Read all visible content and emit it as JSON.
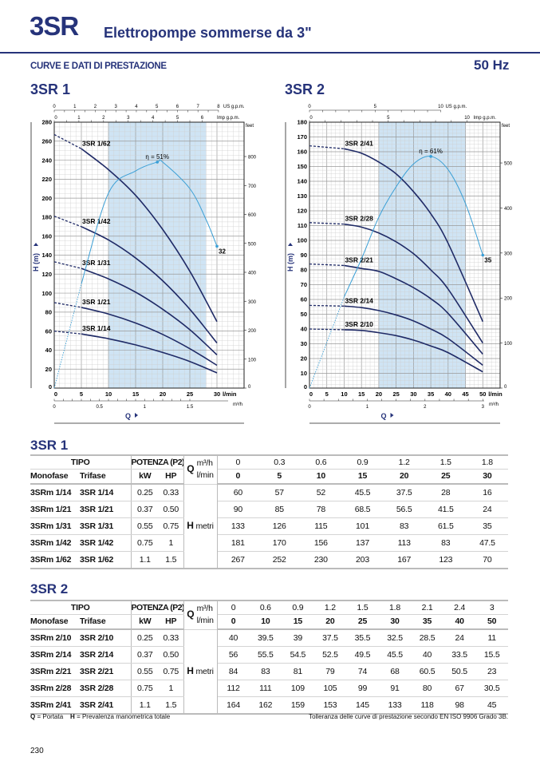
{
  "header": {
    "brand": "3SR",
    "subtitle": "Elettropompe sommerse da 3\"",
    "section": "CURVE E DATI DI PRESTAZIONE",
    "frequency": "50 Hz"
  },
  "colors": {
    "navy": "#26337a",
    "curve": "#1f2a66",
    "efficiency": "#3a9fd6",
    "band": "#cfe4f4"
  },
  "chart_data": [
    {
      "type": "line",
      "title": "3SR 1",
      "ylabel": "H (m)",
      "xlabel": "Q",
      "x_unit": "l/min",
      "xlim": [
        0,
        35
      ],
      "ylim": [
        0,
        280
      ],
      "x_ticks": [
        0,
        5,
        10,
        15,
        20,
        25,
        30
      ],
      "y_ticks": [
        0,
        20,
        40,
        60,
        80,
        100,
        120,
        140,
        160,
        180,
        200,
        220,
        240,
        260,
        280
      ],
      "m3h_ticks": [
        "0",
        "0.5",
        "1",
        "1.5"
      ],
      "m3h_unit": "m³/h",
      "us_gpm_ticks": [
        "0",
        "1",
        "2",
        "3",
        "4",
        "5",
        "6",
        "7",
        "8"
      ],
      "us_gpm_unit": "US g.p.m.",
      "imp_gpm_ticks": [
        "0",
        "1",
        "2",
        "3",
        "4",
        "5",
        "6"
      ],
      "imp_gpm_unit": "Imp g.p.m.",
      "feet_ticks": [
        "0",
        "100",
        "200",
        "300",
        "400",
        "500",
        "600",
        "700",
        "800"
      ],
      "feet_unit": "feet",
      "recommended_range": [
        10,
        28
      ],
      "dashed_until": 5,
      "series": [
        {
          "name": "3SR 1/14",
          "x": [
            0,
            5,
            10,
            15,
            20,
            25,
            30
          ],
          "values": [
            60,
            57,
            52,
            45.5,
            37.5,
            28,
            16
          ]
        },
        {
          "name": "3SR 1/21",
          "x": [
            0,
            5,
            10,
            15,
            20,
            25,
            30
          ],
          "values": [
            90,
            85,
            78,
            68.5,
            56.5,
            41.5,
            24
          ]
        },
        {
          "name": "3SR 1/31",
          "x": [
            0,
            5,
            10,
            15,
            20,
            25,
            30
          ],
          "values": [
            133,
            126,
            115,
            101,
            83,
            61.5,
            35
          ]
        },
        {
          "name": "3SR 1/42",
          "x": [
            0,
            5,
            10,
            15,
            20,
            25,
            30
          ],
          "values": [
            181,
            170,
            156,
            137,
            113,
            83,
            47.5
          ]
        },
        {
          "name": "3SR 1/62",
          "x": [
            0,
            5,
            10,
            15,
            20,
            25,
            30
          ],
          "values": [
            267,
            252,
            230,
            203,
            167,
            123,
            70
          ]
        }
      ],
      "efficiency": {
        "eta_max_axis": 60,
        "x": [
          0,
          5,
          10,
          15,
          19,
          20,
          25,
          28,
          30
        ],
        "values": [
          0,
          23.5,
          44,
          49,
          51,
          51,
          45,
          38,
          32
        ],
        "peak_label": "η = 51%",
        "end_label": "32"
      }
    },
    {
      "type": "line",
      "title": "3SR 2",
      "ylabel": "H (m)",
      "xlabel": "Q",
      "x_unit": "l/min",
      "xlim": [
        0,
        55
      ],
      "ylim": [
        0,
        180
      ],
      "x_ticks": [
        0,
        5,
        10,
        15,
        20,
        25,
        30,
        35,
        40,
        45,
        50
      ],
      "y_ticks": [
        0,
        10,
        20,
        30,
        40,
        50,
        60,
        70,
        80,
        90,
        100,
        110,
        120,
        130,
        140,
        150,
        160,
        170,
        180
      ],
      "m3h_ticks": [
        "0",
        "1",
        "2",
        "3"
      ],
      "m3h_unit": "m³/h",
      "us_gpm_ticks": [
        "0",
        "5",
        "10"
      ],
      "us_gpm_unit": "US g.p.m.",
      "imp_gpm_ticks": [
        "0",
        "5",
        "10"
      ],
      "imp_gpm_unit": "Imp g.p.m.",
      "feet_ticks": [
        "0",
        "100",
        "200",
        "300",
        "400",
        "500"
      ],
      "feet_unit": "feet",
      "recommended_range": [
        20,
        45
      ],
      "dashed_until": 10,
      "series": [
        {
          "name": "3SR 2/10",
          "x": [
            0,
            10,
            15,
            20,
            25,
            30,
            35,
            40,
            50
          ],
          "values": [
            40,
            39.5,
            39,
            37.5,
            35.5,
            32.5,
            28.5,
            24,
            11
          ]
        },
        {
          "name": "3SR 2/14",
          "x": [
            0,
            10,
            15,
            20,
            25,
            30,
            35,
            40,
            50
          ],
          "values": [
            56,
            55.5,
            54.5,
            52.5,
            49.5,
            45.5,
            40,
            33.5,
            15.5
          ]
        },
        {
          "name": "3SR 2/21",
          "x": [
            0,
            10,
            15,
            20,
            25,
            30,
            35,
            40,
            50
          ],
          "values": [
            84,
            83,
            81,
            79,
            74,
            68,
            60.5,
            50.5,
            23
          ]
        },
        {
          "name": "3SR 2/28",
          "x": [
            0,
            10,
            15,
            20,
            25,
            30,
            35,
            40,
            50
          ],
          "values": [
            112,
            111,
            109,
            105,
            99,
            91,
            80,
            67,
            30.5
          ]
        },
        {
          "name": "3SR 2/41",
          "x": [
            0,
            10,
            15,
            20,
            25,
            30,
            35,
            40,
            50
          ],
          "values": [
            164,
            162,
            159,
            153,
            145,
            133,
            118,
            98,
            45
          ]
        }
      ],
      "efficiency": {
        "eta_max_axis": 70,
        "x": [
          0,
          10,
          15,
          20,
          25,
          30,
          35,
          40,
          45,
          50
        ],
        "values": [
          0,
          24,
          34,
          45,
          53,
          59,
          61,
          57.5,
          48.6,
          35
        ],
        "peak_label": "η = 61%",
        "end_label": "35"
      }
    }
  ],
  "tables": [
    {
      "title": "3SR 1",
      "tipo": "TIPO",
      "potenza": "POTENZA (P2)",
      "monofase": "Monofase",
      "trifase": "Trifase",
      "kw": "kW",
      "hp": "HP",
      "q": "Q",
      "m3h": "m³/h",
      "lmin": "l/min",
      "h": "H",
      "metri": "metri",
      "q_m3h": [
        "0",
        "0.3",
        "0.6",
        "0.9",
        "1.2",
        "1.5",
        "1.8"
      ],
      "q_lmin": [
        "0",
        "5",
        "10",
        "15",
        "20",
        "25",
        "30"
      ],
      "rows": [
        {
          "mono": "3SRm 1/14",
          "tri": "3SR 1/14",
          "kw": "0.25",
          "hp": "0.33",
          "h": [
            "60",
            "57",
            "52",
            "45.5",
            "37.5",
            "28",
            "16"
          ]
        },
        {
          "mono": "3SRm 1/21",
          "tri": "3SR 1/21",
          "kw": "0.37",
          "hp": "0.50",
          "h": [
            "90",
            "85",
            "78",
            "68.5",
            "56.5",
            "41.5",
            "24"
          ]
        },
        {
          "mono": "3SRm 1/31",
          "tri": "3SR 1/31",
          "kw": "0.55",
          "hp": "0.75",
          "h": [
            "133",
            "126",
            "115",
            "101",
            "83",
            "61.5",
            "35"
          ]
        },
        {
          "mono": "3SRm 1/42",
          "tri": "3SR 1/42",
          "kw": "0.75",
          "hp": "1",
          "h": [
            "181",
            "170",
            "156",
            "137",
            "113",
            "83",
            "47.5"
          ]
        },
        {
          "mono": "3SRm 1/62",
          "tri": "3SR 1/62",
          "kw": "1.1",
          "hp": "1.5",
          "h": [
            "267",
            "252",
            "230",
            "203",
            "167",
            "123",
            "70"
          ]
        }
      ]
    },
    {
      "title": "3SR 2",
      "tipo": "TIPO",
      "potenza": "POTENZA (P2)",
      "monofase": "Monofase",
      "trifase": "Trifase",
      "kw": "kW",
      "hp": "HP",
      "q": "Q",
      "m3h": "m³/h",
      "lmin": "l/min",
      "h": "H",
      "metri": "metri",
      "q_m3h": [
        "0",
        "0.6",
        "0.9",
        "1.2",
        "1.5",
        "1.8",
        "2.1",
        "2.4",
        "3"
      ],
      "q_lmin": [
        "0",
        "10",
        "15",
        "20",
        "25",
        "30",
        "35",
        "40",
        "50"
      ],
      "rows": [
        {
          "mono": "3SRm 2/10",
          "tri": "3SR 2/10",
          "kw": "0.25",
          "hp": "0.33",
          "h": [
            "40",
            "39.5",
            "39",
            "37.5",
            "35.5",
            "32.5",
            "28.5",
            "24",
            "11"
          ]
        },
        {
          "mono": "3SRm 2/14",
          "tri": "3SR 2/14",
          "kw": "0.37",
          "hp": "0.50",
          "h": [
            "56",
            "55.5",
            "54.5",
            "52.5",
            "49.5",
            "45.5",
            "40",
            "33.5",
            "15.5"
          ]
        },
        {
          "mono": "3SRm 2/21",
          "tri": "3SR 2/21",
          "kw": "0.55",
          "hp": "0.75",
          "h": [
            "84",
            "83",
            "81",
            "79",
            "74",
            "68",
            "60.5",
            "50.5",
            "23"
          ]
        },
        {
          "mono": "3SRm 2/28",
          "tri": "3SR 2/28",
          "kw": "0.75",
          "hp": "1",
          "h": [
            "112",
            "111",
            "109",
            "105",
            "99",
            "91",
            "80",
            "67",
            "30.5"
          ]
        },
        {
          "mono": "3SRm 2/41",
          "tri": "3SR 2/41",
          "kw": "1.1",
          "hp": "1.5",
          "h": [
            "164",
            "162",
            "159",
            "153",
            "145",
            "133",
            "118",
            "98",
            "45"
          ]
        }
      ]
    }
  ],
  "footer": {
    "legend_q": "Q",
    "legend_q_text": "= Portata",
    "legend_h": "H",
    "legend_h_text": "= Prevalenza manometrica totale",
    "tolerance": "Tolleranza delle curve di prestazione secondo EN ISO 9906 Grado 3B.",
    "page_number": "230"
  }
}
